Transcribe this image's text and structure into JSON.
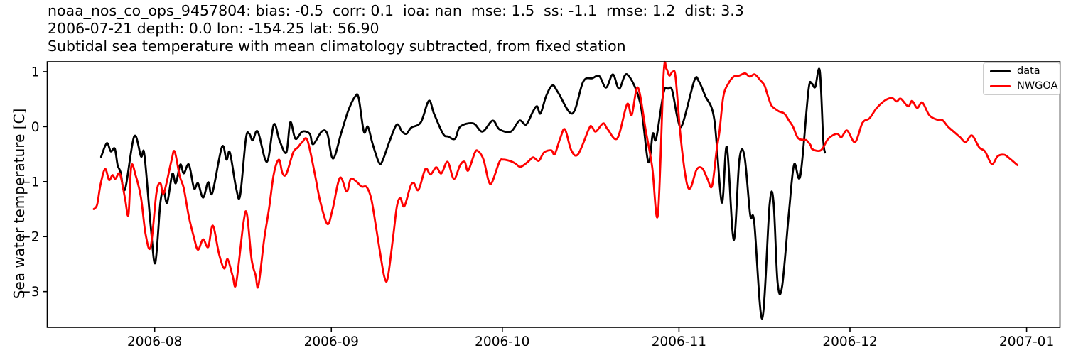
{
  "chart_data": {
    "type": "line",
    "title_lines": [
      "noaa_nos_co_ops_9457804: bias: -0.5  corr: 0.1  ioa: nan  mse: 1.5  ss: -1.1  rmse: 1.2  dist: 3.3",
      "2006-07-21 depth: 0.0 lon: -154.25 lat: 56.90",
      "Subtidal sea temperature with mean climatology subtracted, from fixed station"
    ],
    "ylabel": "Sea water temperature [C]",
    "x_unit": "days since 2006-07-21",
    "xlim_days": [
      -7.85,
      169.85
    ],
    "ylim": [
      -3.65,
      1.18
    ],
    "grid": false,
    "legend_position": "upper right",
    "x_ticks": [
      {
        "day": 11,
        "label": "2006-08"
      },
      {
        "day": 42,
        "label": "2006-09"
      },
      {
        "day": 72,
        "label": "2006-10"
      },
      {
        "day": 103,
        "label": "2006-11"
      },
      {
        "day": 133,
        "label": "2006-12"
      },
      {
        "day": 164,
        "label": "2007-01"
      }
    ],
    "y_ticks": [
      {
        "value": 1,
        "label": "1"
      },
      {
        "value": 0,
        "label": "0"
      },
      {
        "value": -1,
        "label": "−1"
      },
      {
        "value": -2,
        "label": "−2"
      },
      {
        "value": -3,
        "label": "−3"
      }
    ],
    "series": [
      {
        "name": "data",
        "color": "#000000",
        "line_width": 2.8,
        "points": [
          [
            1.6,
            -0.55
          ],
          [
            2.6,
            -0.3
          ],
          [
            3.3,
            -0.45
          ],
          [
            4.0,
            -0.4
          ],
          [
            4.5,
            -0.7
          ],
          [
            5.0,
            -0.82
          ],
          [
            5.8,
            -1.14
          ],
          [
            7.4,
            -0.18
          ],
          [
            8.6,
            -0.54
          ],
          [
            9.2,
            -0.51
          ],
          [
            10.3,
            -1.8
          ],
          [
            11.1,
            -2.48
          ],
          [
            12.0,
            -1.38
          ],
          [
            12.6,
            -1.18
          ],
          [
            13.2,
            -1.38
          ],
          [
            14.1,
            -0.86
          ],
          [
            14.7,
            -1.03
          ],
          [
            15.5,
            -0.69
          ],
          [
            16.1,
            -0.85
          ],
          [
            17.0,
            -0.69
          ],
          [
            17.9,
            -1.12
          ],
          [
            18.6,
            -1.03
          ],
          [
            19.5,
            -1.29
          ],
          [
            20.4,
            -1.01
          ],
          [
            21.1,
            -1.21
          ],
          [
            22.8,
            -0.37
          ],
          [
            23.6,
            -0.6
          ],
          [
            24.2,
            -0.47
          ],
          [
            25.3,
            -1.12
          ],
          [
            26.0,
            -1.25
          ],
          [
            27.0,
            -0.22
          ],
          [
            27.6,
            -0.13
          ],
          [
            28.2,
            -0.25
          ],
          [
            29.1,
            -0.09
          ],
          [
            30.7,
            -0.64
          ],
          [
            31.9,
            0.04
          ],
          [
            32.9,
            -0.25
          ],
          [
            34.1,
            -0.47
          ],
          [
            34.8,
            0.08
          ],
          [
            35.7,
            -0.22
          ],
          [
            36.9,
            -0.09
          ],
          [
            38.2,
            -0.13
          ],
          [
            38.8,
            -0.32
          ],
          [
            40.3,
            -0.09
          ],
          [
            41.3,
            -0.13
          ],
          [
            42.3,
            -0.58
          ],
          [
            43.8,
            -0.09
          ],
          [
            45.0,
            0.3
          ],
          [
            46.2,
            0.55
          ],
          [
            46.8,
            0.52
          ],
          [
            47.7,
            -0.09
          ],
          [
            48.4,
            0.0
          ],
          [
            49.2,
            -0.3
          ],
          [
            50.3,
            -0.64
          ],
          [
            50.9,
            -0.64
          ],
          [
            52.3,
            -0.24
          ],
          [
            53.5,
            0.04
          ],
          [
            54.4,
            -0.09
          ],
          [
            55.2,
            -0.13
          ],
          [
            56.0,
            -0.02
          ],
          [
            57.7,
            0.08
          ],
          [
            59.1,
            0.47
          ],
          [
            60.0,
            0.24
          ],
          [
            61.6,
            -0.13
          ],
          [
            62.5,
            -0.18
          ],
          [
            63.7,
            -0.22
          ],
          [
            64.6,
            0.0
          ],
          [
            66.9,
            0.06
          ],
          [
            68.5,
            -0.09
          ],
          [
            70.3,
            0.11
          ],
          [
            71.5,
            -0.05
          ],
          [
            73.5,
            -0.09
          ],
          [
            75.0,
            0.11
          ],
          [
            76.2,
            0.04
          ],
          [
            77.4,
            0.28
          ],
          [
            78.1,
            0.37
          ],
          [
            78.7,
            0.24
          ],
          [
            79.7,
            0.56
          ],
          [
            80.8,
            0.75
          ],
          [
            81.8,
            0.62
          ],
          [
            84.3,
            0.24
          ],
          [
            86.2,
            0.82
          ],
          [
            87.8,
            0.88
          ],
          [
            89.0,
            0.92
          ],
          [
            90.2,
            0.71
          ],
          [
            91.4,
            0.95
          ],
          [
            92.5,
            0.69
          ],
          [
            93.9,
            0.95
          ],
          [
            96.2,
            0.43
          ],
          [
            97.6,
            -0.64
          ],
          [
            98.4,
            -0.13
          ],
          [
            99.0,
            -0.22
          ],
          [
            100.3,
            0.62
          ],
          [
            101.1,
            0.69
          ],
          [
            101.8,
            0.66
          ],
          [
            102.8,
            0.13
          ],
          [
            103.6,
            0.04
          ],
          [
            105.7,
            0.84
          ],
          [
            106.5,
            0.82
          ],
          [
            107.6,
            0.56
          ],
          [
            109.2,
            0.13
          ],
          [
            110.5,
            -1.38
          ],
          [
            111.4,
            -0.37
          ],
          [
            112.6,
            -2.06
          ],
          [
            113.6,
            -0.6
          ],
          [
            114.5,
            -0.54
          ],
          [
            115.5,
            -1.61
          ],
          [
            116.2,
            -1.74
          ],
          [
            117.6,
            -3.49
          ],
          [
            118.9,
            -1.42
          ],
          [
            119.6,
            -1.38
          ],
          [
            120.3,
            -2.84
          ],
          [
            121.1,
            -2.9
          ],
          [
            122.3,
            -1.55
          ],
          [
            123.2,
            -0.69
          ],
          [
            124.3,
            -0.89
          ],
          [
            125.7,
            0.65
          ],
          [
            126.3,
            0.78
          ],
          [
            126.9,
            0.72
          ],
          [
            127.7,
            1.02
          ],
          [
            128.3,
            -0.22
          ],
          [
            128.6,
            -0.47
          ]
        ]
      },
      {
        "name": "NWGOA",
        "color": "#ff0000",
        "line_width": 2.8,
        "points": [
          [
            0.3,
            -1.5
          ],
          [
            0.9,
            -1.42
          ],
          [
            1.5,
            -1.05
          ],
          [
            2.3,
            -0.77
          ],
          [
            3.0,
            -0.97
          ],
          [
            3.6,
            -0.88
          ],
          [
            4.1,
            -0.95
          ],
          [
            4.9,
            -0.86
          ],
          [
            5.8,
            -1.31
          ],
          [
            6.4,
            -1.6
          ],
          [
            6.9,
            -0.72
          ],
          [
            7.7,
            -0.9
          ],
          [
            8.6,
            -1.29
          ],
          [
            9.4,
            -1.95
          ],
          [
            10.3,
            -2.19
          ],
          [
            11.3,
            -1.21
          ],
          [
            12.0,
            -1.03
          ],
          [
            12.6,
            -1.21
          ],
          [
            13.9,
            -0.64
          ],
          [
            14.5,
            -0.45
          ],
          [
            15.4,
            -0.9
          ],
          [
            16.1,
            -1.12
          ],
          [
            17.0,
            -1.64
          ],
          [
            17.9,
            -2.02
          ],
          [
            18.6,
            -2.24
          ],
          [
            19.5,
            -2.05
          ],
          [
            20.4,
            -2.19
          ],
          [
            21.2,
            -1.8
          ],
          [
            22.3,
            -2.32
          ],
          [
            23.2,
            -2.58
          ],
          [
            23.8,
            -2.41
          ],
          [
            24.7,
            -2.72
          ],
          [
            25.3,
            -2.85
          ],
          [
            26.6,
            -1.73
          ],
          [
            27.2,
            -1.6
          ],
          [
            28.0,
            -2.41
          ],
          [
            28.7,
            -2.7
          ],
          [
            29.2,
            -2.9
          ],
          [
            30.2,
            -2.06
          ],
          [
            31.1,
            -1.47
          ],
          [
            31.9,
            -0.86
          ],
          [
            32.8,
            -0.6
          ],
          [
            33.4,
            -0.84
          ],
          [
            34.1,
            -0.86
          ],
          [
            35.3,
            -0.47
          ],
          [
            36.1,
            -0.38
          ],
          [
            36.9,
            -0.28
          ],
          [
            37.8,
            -0.25
          ],
          [
            39.1,
            -0.86
          ],
          [
            40.0,
            -1.34
          ],
          [
            41.3,
            -1.77
          ],
          [
            42.2,
            -1.51
          ],
          [
            43.5,
            -0.93
          ],
          [
            44.7,
            -1.18
          ],
          [
            45.4,
            -0.95
          ],
          [
            46.4,
            -1.0
          ],
          [
            47.3,
            -1.09
          ],
          [
            48.2,
            -1.1
          ],
          [
            49.0,
            -1.31
          ],
          [
            49.8,
            -1.8
          ],
          [
            50.6,
            -2.32
          ],
          [
            51.3,
            -2.73
          ],
          [
            51.9,
            -2.75
          ],
          [
            52.9,
            -1.95
          ],
          [
            53.5,
            -1.45
          ],
          [
            54.1,
            -1.3
          ],
          [
            54.8,
            -1.45
          ],
          [
            55.9,
            -1.08
          ],
          [
            56.5,
            -1.03
          ],
          [
            57.3,
            -1.15
          ],
          [
            58.5,
            -0.77
          ],
          [
            59.4,
            -0.87
          ],
          [
            60.4,
            -0.74
          ],
          [
            61.3,
            -0.85
          ],
          [
            62.4,
            -0.64
          ],
          [
            63.5,
            -0.95
          ],
          [
            64.6,
            -0.7
          ],
          [
            65.4,
            -0.64
          ],
          [
            66.0,
            -0.8
          ],
          [
            67.2,
            -0.47
          ],
          [
            67.8,
            -0.45
          ],
          [
            68.7,
            -0.6
          ],
          [
            69.6,
            -0.99
          ],
          [
            70.2,
            -1.01
          ],
          [
            71.5,
            -0.64
          ],
          [
            72.2,
            -0.6
          ],
          [
            73.5,
            -0.63
          ],
          [
            74.3,
            -0.67
          ],
          [
            75.2,
            -0.73
          ],
          [
            76.5,
            -0.64
          ],
          [
            77.4,
            -0.56
          ],
          [
            78.4,
            -0.62
          ],
          [
            79.3,
            -0.47
          ],
          [
            80.6,
            -0.43
          ],
          [
            81.2,
            -0.5
          ],
          [
            82.2,
            -0.2
          ],
          [
            83.0,
            -0.05
          ],
          [
            84.1,
            -0.43
          ],
          [
            85.3,
            -0.5
          ],
          [
            87.2,
            -0.04
          ],
          [
            87.7,
            0.0
          ],
          [
            88.4,
            -0.09
          ],
          [
            89.7,
            0.06
          ],
          [
            90.5,
            -0.05
          ],
          [
            92.2,
            -0.21
          ],
          [
            93.9,
            0.41
          ],
          [
            94.7,
            0.21
          ],
          [
            95.8,
            0.71
          ],
          [
            97.2,
            -0.09
          ],
          [
            98.3,
            -0.73
          ],
          [
            99.3,
            -1.6
          ],
          [
            100.3,
            0.95
          ],
          [
            100.8,
            1.05
          ],
          [
            101.3,
            0.93
          ],
          [
            101.9,
            1.0
          ],
          [
            102.4,
            0.9
          ],
          [
            103.2,
            -0.09
          ],
          [
            103.9,
            -0.73
          ],
          [
            104.5,
            -1.08
          ],
          [
            105.1,
            -1.1
          ],
          [
            106.1,
            -0.78
          ],
          [
            107.1,
            -0.76
          ],
          [
            108.0,
            -0.95
          ],
          [
            108.8,
            -1.08
          ],
          [
            109.6,
            -0.43
          ],
          [
            110.1,
            -0.09
          ],
          [
            110.8,
            0.56
          ],
          [
            111.7,
            0.79
          ],
          [
            112.6,
            0.91
          ],
          [
            113.6,
            0.93
          ],
          [
            114.6,
            0.97
          ],
          [
            115.4,
            0.91
          ],
          [
            116.3,
            0.95
          ],
          [
            117.3,
            0.84
          ],
          [
            118.0,
            0.75
          ],
          [
            118.6,
            0.56
          ],
          [
            119.2,
            0.39
          ],
          [
            119.8,
            0.33
          ],
          [
            120.5,
            0.28
          ],
          [
            121.3,
            0.25
          ],
          [
            121.7,
            0.21
          ],
          [
            122.3,
            0.11
          ],
          [
            123.0,
            0.0
          ],
          [
            123.9,
            -0.21
          ],
          [
            125.0,
            -0.24
          ],
          [
            125.4,
            -0.25
          ],
          [
            126.1,
            -0.34
          ],
          [
            126.4,
            -0.41
          ],
          [
            127.9,
            -0.43
          ],
          [
            129.2,
            -0.22
          ],
          [
            130.7,
            -0.13
          ],
          [
            131.5,
            -0.19
          ],
          [
            132.5,
            -0.07
          ],
          [
            133.9,
            -0.28
          ],
          [
            135.2,
            0.07
          ],
          [
            136.4,
            0.15
          ],
          [
            137.7,
            0.34
          ],
          [
            139.2,
            0.48
          ],
          [
            140.4,
            0.52
          ],
          [
            141.2,
            0.46
          ],
          [
            141.9,
            0.51
          ],
          [
            143.2,
            0.37
          ],
          [
            143.9,
            0.47
          ],
          [
            144.8,
            0.34
          ],
          [
            145.7,
            0.44
          ],
          [
            146.9,
            0.21
          ],
          [
            148.2,
            0.13
          ],
          [
            149.2,
            0.12
          ],
          [
            150.2,
            0.0
          ],
          [
            151.3,
            -0.1
          ],
          [
            152.3,
            -0.19
          ],
          [
            153.3,
            -0.28
          ],
          [
            154.4,
            -0.16
          ],
          [
            155.7,
            -0.38
          ],
          [
            156.7,
            -0.45
          ],
          [
            157.9,
            -0.68
          ],
          [
            158.9,
            -0.54
          ],
          [
            160.0,
            -0.51
          ],
          [
            160.8,
            -0.56
          ],
          [
            162.4,
            -0.7
          ]
        ]
      }
    ]
  }
}
